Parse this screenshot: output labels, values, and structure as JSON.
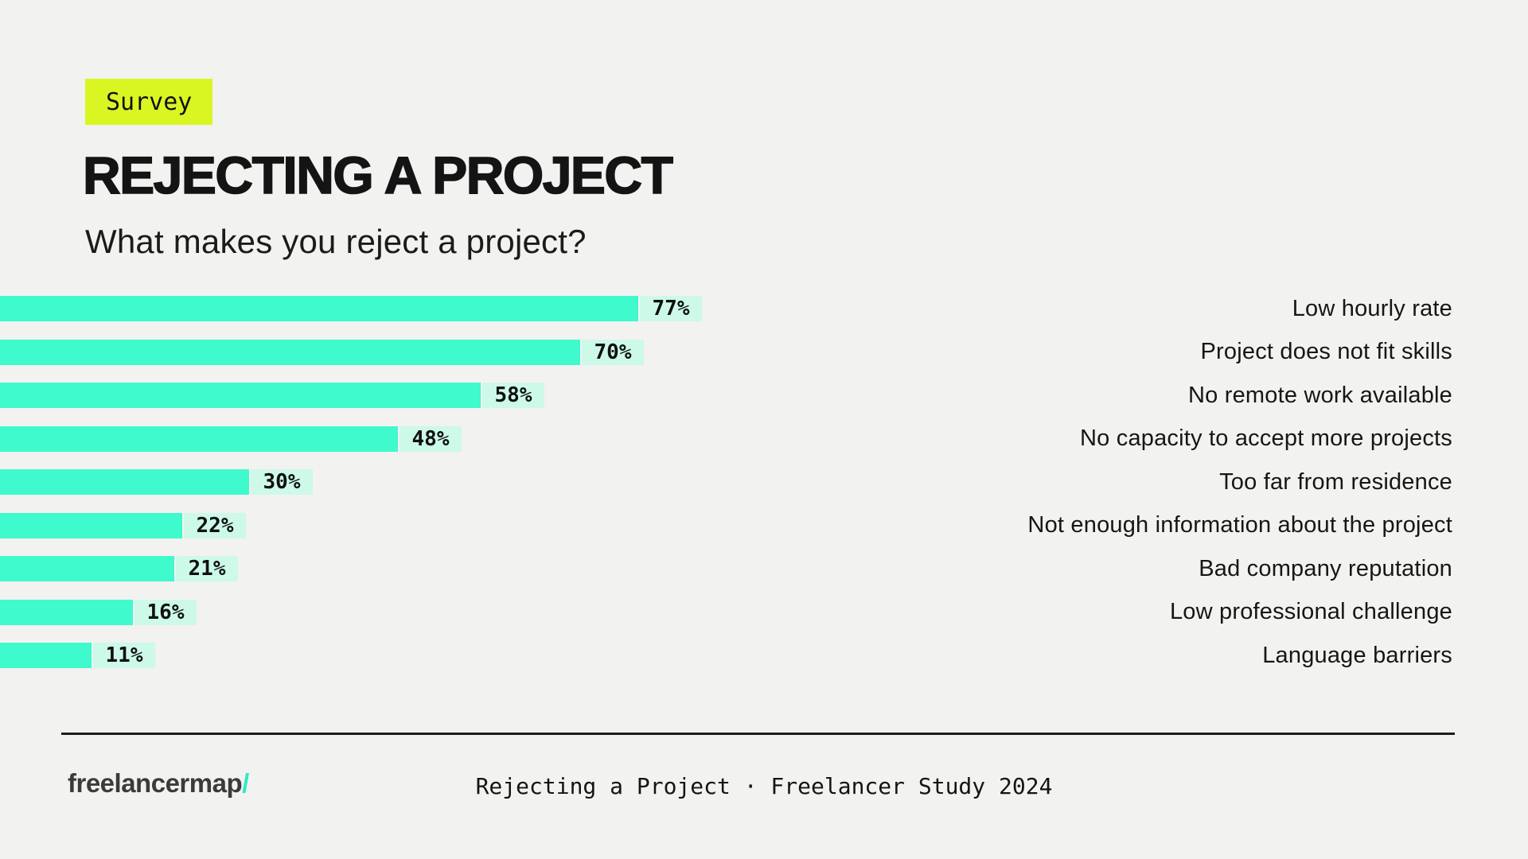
{
  "colors": {
    "background": "#F2F2F0",
    "bar": "#3EFACC",
    "chip_bg": "#CDF9E9",
    "badge_bg": "#D9F622",
    "text": "#141414",
    "logo_text": "#3B3B3A",
    "logo_slash": "#2EE8C6"
  },
  "header": {
    "badge": "Survey",
    "title": "REJECTING A PROJECT",
    "subtitle": "What makes you reject a project?"
  },
  "chart_data": {
    "type": "bar",
    "orientation": "horizontal",
    "title": "REJECTING A PROJECT",
    "subtitle": "What makes you reject a project?",
    "categories": [
      "Low hourly rate",
      "Project does not fit skills",
      "No remote work available",
      "No capacity to accept more projects",
      "Too far from residence",
      "Not enough information about the project",
      "Bad company reputation",
      "Low professional challenge",
      "Language barriers"
    ],
    "values": [
      77,
      70,
      58,
      48,
      30,
      22,
      21,
      16,
      11
    ],
    "value_suffix": "%",
    "xlim": [
      0,
      92
    ],
    "grid": false,
    "legend": false,
    "value_labels_shown": true,
    "category_labels_position": "right-aligned-right-side"
  },
  "footer": {
    "logo_text": "freelancermap",
    "logo_slash": "/",
    "caption": "Rejecting a Project · Freelancer Study 2024"
  }
}
